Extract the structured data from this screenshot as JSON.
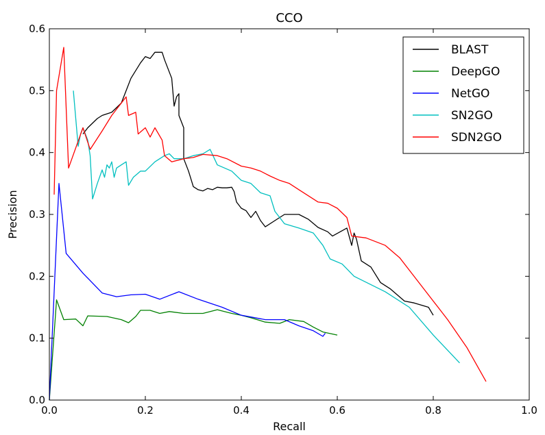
{
  "chart_data": {
    "type": "line",
    "title": "CCO",
    "xlabel": "Recall",
    "ylabel": "Precision",
    "xlim": [
      0.0,
      1.0
    ],
    "ylim": [
      0.0,
      0.6
    ],
    "xticks": [
      0.0,
      0.2,
      0.4,
      0.6,
      0.8,
      1.0
    ],
    "yticks": [
      0.0,
      0.1,
      0.2,
      0.3,
      0.4,
      0.5,
      0.6
    ],
    "xtick_labels": [
      "0.0",
      "0.2",
      "0.4",
      "0.6",
      "0.8",
      "1.0"
    ],
    "ytick_labels": [
      "0.0",
      "0.1",
      "0.2",
      "0.3",
      "0.4",
      "0.5",
      "0.6"
    ],
    "grid": false,
    "legend_position": "top-right",
    "series": [
      {
        "name": "BLAST",
        "color": "#000000",
        "points": [
          [
            0.07,
            0.43
          ],
          [
            0.08,
            0.44
          ],
          [
            0.1,
            0.455
          ],
          [
            0.11,
            0.46
          ],
          [
            0.13,
            0.465
          ],
          [
            0.15,
            0.48
          ],
          [
            0.17,
            0.52
          ],
          [
            0.19,
            0.545
          ],
          [
            0.2,
            0.555
          ],
          [
            0.21,
            0.552
          ],
          [
            0.22,
            0.562
          ],
          [
            0.235,
            0.562
          ],
          [
            0.24,
            0.55
          ],
          [
            0.255,
            0.52
          ],
          [
            0.26,
            0.475
          ],
          [
            0.265,
            0.49
          ],
          [
            0.27,
            0.495
          ],
          [
            0.27,
            0.46
          ],
          [
            0.28,
            0.44
          ],
          [
            0.28,
            0.39
          ],
          [
            0.29,
            0.37
          ],
          [
            0.3,
            0.345
          ],
          [
            0.31,
            0.34
          ],
          [
            0.32,
            0.338
          ],
          [
            0.33,
            0.342
          ],
          [
            0.34,
            0.34
          ],
          [
            0.35,
            0.344
          ],
          [
            0.36,
            0.343
          ],
          [
            0.37,
            0.343
          ],
          [
            0.38,
            0.344
          ],
          [
            0.385,
            0.337
          ],
          [
            0.39,
            0.32
          ],
          [
            0.4,
            0.31
          ],
          [
            0.41,
            0.306
          ],
          [
            0.42,
            0.295
          ],
          [
            0.43,
            0.305
          ],
          [
            0.44,
            0.29
          ],
          [
            0.45,
            0.28
          ],
          [
            0.47,
            0.29
          ],
          [
            0.49,
            0.3
          ],
          [
            0.52,
            0.3
          ],
          [
            0.54,
            0.292
          ],
          [
            0.56,
            0.279
          ],
          [
            0.58,
            0.272
          ],
          [
            0.59,
            0.265
          ],
          [
            0.62,
            0.278
          ],
          [
            0.63,
            0.25
          ],
          [
            0.635,
            0.27
          ],
          [
            0.64,
            0.26
          ],
          [
            0.65,
            0.225
          ],
          [
            0.67,
            0.215
          ],
          [
            0.69,
            0.19
          ],
          [
            0.71,
            0.18
          ],
          [
            0.74,
            0.16
          ],
          [
            0.76,
            0.157
          ],
          [
            0.79,
            0.15
          ],
          [
            0.8,
            0.137
          ]
        ]
      },
      {
        "name": "DeepGO",
        "color": "#008000",
        "points": [
          [
            0.0,
            0.0
          ],
          [
            0.015,
            0.162
          ],
          [
            0.03,
            0.13
          ],
          [
            0.055,
            0.131
          ],
          [
            0.07,
            0.12
          ],
          [
            0.08,
            0.136
          ],
          [
            0.12,
            0.135
          ],
          [
            0.15,
            0.13
          ],
          [
            0.165,
            0.125
          ],
          [
            0.18,
            0.135
          ],
          [
            0.19,
            0.145
          ],
          [
            0.21,
            0.145
          ],
          [
            0.23,
            0.14
          ],
          [
            0.25,
            0.143
          ],
          [
            0.28,
            0.14
          ],
          [
            0.32,
            0.14
          ],
          [
            0.35,
            0.146
          ],
          [
            0.38,
            0.14
          ],
          [
            0.4,
            0.137
          ],
          [
            0.42,
            0.133
          ],
          [
            0.45,
            0.126
          ],
          [
            0.48,
            0.124
          ],
          [
            0.5,
            0.13
          ],
          [
            0.53,
            0.127
          ],
          [
            0.55,
            0.118
          ],
          [
            0.57,
            0.11
          ],
          [
            0.6,
            0.105
          ]
        ]
      },
      {
        "name": "NetGO",
        "color": "#0000ff",
        "points": [
          [
            0.0,
            0.0
          ],
          [
            0.02,
            0.35
          ],
          [
            0.035,
            0.237
          ],
          [
            0.07,
            0.205
          ],
          [
            0.11,
            0.173
          ],
          [
            0.14,
            0.167
          ],
          [
            0.17,
            0.17
          ],
          [
            0.2,
            0.171
          ],
          [
            0.23,
            0.163
          ],
          [
            0.27,
            0.175
          ],
          [
            0.31,
            0.163
          ],
          [
            0.36,
            0.15
          ],
          [
            0.4,
            0.137
          ],
          [
            0.45,
            0.13
          ],
          [
            0.49,
            0.13
          ],
          [
            0.52,
            0.12
          ],
          [
            0.55,
            0.112
          ],
          [
            0.57,
            0.103
          ],
          [
            0.575,
            0.108
          ]
        ]
      },
      {
        "name": "SN2GO",
        "color": "#00bfbf",
        "points": [
          [
            0.05,
            0.5
          ],
          [
            0.06,
            0.41
          ],
          [
            0.065,
            0.43
          ],
          [
            0.07,
            0.44
          ],
          [
            0.08,
            0.42
          ],
          [
            0.085,
            0.395
          ],
          [
            0.09,
            0.325
          ],
          [
            0.1,
            0.35
          ],
          [
            0.11,
            0.372
          ],
          [
            0.115,
            0.36
          ],
          [
            0.12,
            0.38
          ],
          [
            0.125,
            0.375
          ],
          [
            0.13,
            0.385
          ],
          [
            0.135,
            0.36
          ],
          [
            0.14,
            0.375
          ],
          [
            0.15,
            0.38
          ],
          [
            0.16,
            0.385
          ],
          [
            0.165,
            0.347
          ],
          [
            0.175,
            0.36
          ],
          [
            0.19,
            0.37
          ],
          [
            0.2,
            0.37
          ],
          [
            0.22,
            0.385
          ],
          [
            0.24,
            0.395
          ],
          [
            0.25,
            0.398
          ],
          [
            0.26,
            0.39
          ],
          [
            0.28,
            0.39
          ],
          [
            0.3,
            0.395
          ],
          [
            0.32,
            0.398
          ],
          [
            0.335,
            0.405
          ],
          [
            0.35,
            0.38
          ],
          [
            0.38,
            0.37
          ],
          [
            0.4,
            0.355
          ],
          [
            0.42,
            0.35
          ],
          [
            0.44,
            0.335
          ],
          [
            0.46,
            0.33
          ],
          [
            0.47,
            0.305
          ],
          [
            0.49,
            0.285
          ],
          [
            0.52,
            0.278
          ],
          [
            0.55,
            0.27
          ],
          [
            0.57,
            0.25
          ],
          [
            0.585,
            0.228
          ],
          [
            0.61,
            0.22
          ],
          [
            0.635,
            0.2
          ],
          [
            0.7,
            0.175
          ],
          [
            0.75,
            0.15
          ],
          [
            0.8,
            0.105
          ],
          [
            0.855,
            0.06
          ]
        ]
      },
      {
        "name": "SDN2GO",
        "color": "#ff0000",
        "points": [
          [
            0.01,
            0.332
          ],
          [
            0.015,
            0.5
          ],
          [
            0.03,
            0.57
          ],
          [
            0.04,
            0.375
          ],
          [
            0.07,
            0.44
          ],
          [
            0.085,
            0.405
          ],
          [
            0.11,
            0.435
          ],
          [
            0.13,
            0.46
          ],
          [
            0.16,
            0.49
          ],
          [
            0.165,
            0.46
          ],
          [
            0.18,
            0.465
          ],
          [
            0.185,
            0.43
          ],
          [
            0.2,
            0.44
          ],
          [
            0.21,
            0.425
          ],
          [
            0.22,
            0.44
          ],
          [
            0.235,
            0.42
          ],
          [
            0.24,
            0.395
          ],
          [
            0.255,
            0.385
          ],
          [
            0.28,
            0.39
          ],
          [
            0.3,
            0.392
          ],
          [
            0.32,
            0.397
          ],
          [
            0.35,
            0.395
          ],
          [
            0.37,
            0.39
          ],
          [
            0.4,
            0.378
          ],
          [
            0.42,
            0.375
          ],
          [
            0.44,
            0.37
          ],
          [
            0.46,
            0.362
          ],
          [
            0.48,
            0.355
          ],
          [
            0.5,
            0.35
          ],
          [
            0.52,
            0.34
          ],
          [
            0.54,
            0.33
          ],
          [
            0.56,
            0.32
          ],
          [
            0.58,
            0.318
          ],
          [
            0.6,
            0.31
          ],
          [
            0.62,
            0.295
          ],
          [
            0.63,
            0.265
          ],
          [
            0.66,
            0.262
          ],
          [
            0.7,
            0.25
          ],
          [
            0.73,
            0.23
          ],
          [
            0.77,
            0.19
          ],
          [
            0.83,
            0.13
          ],
          [
            0.87,
            0.085
          ],
          [
            0.91,
            0.03
          ]
        ]
      }
    ]
  }
}
